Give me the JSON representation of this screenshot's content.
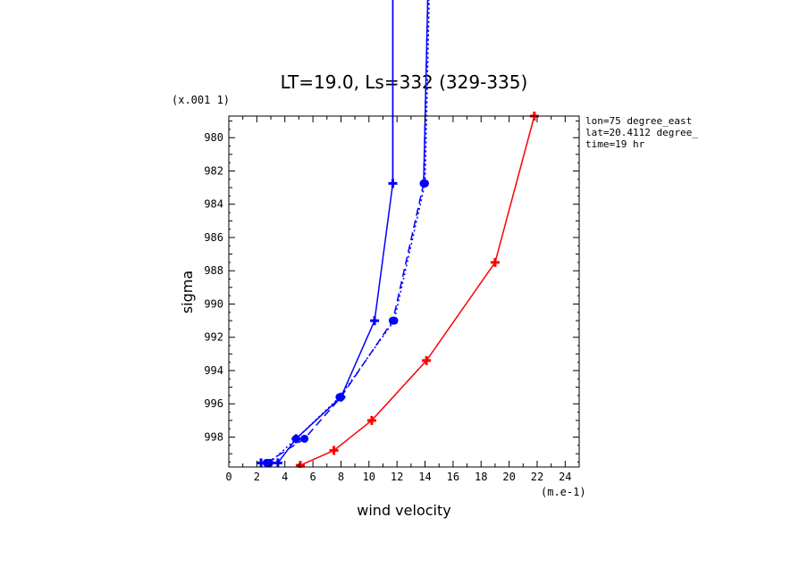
{
  "chart_data": {
    "type": "line",
    "title": "LT=19.0, Ls=332 (329-335)",
    "xlabel": "wind velocity",
    "ylabel": "sigma",
    "x_unit": "(m.e-1)",
    "y_unit": "(x.001 1)",
    "xlim": [
      0,
      25
    ],
    "ylim": [
      999.8,
      978.7
    ],
    "x_ticks": [
      0,
      2,
      4,
      6,
      8,
      10,
      12,
      14,
      16,
      18,
      20,
      22,
      24
    ],
    "y_ticks": [
      980,
      982,
      984,
      986,
      988,
      990,
      992,
      994,
      996,
      998
    ],
    "info": [
      "lon=75 degree_east",
      "lat=20.4112 degree_",
      "time=19 hr"
    ],
    "series": [
      {
        "color": "#0000ff",
        "style": "solid",
        "marker": "plus",
        "points": [
          [
            2.3,
            999.55
          ],
          [
            3.5,
            999.55
          ],
          [
            4.8,
            998.1
          ],
          [
            8.0,
            995.6
          ],
          [
            10.4,
            991.0
          ],
          [
            11.7,
            982.75
          ],
          [
            11.7,
            960.0
          ]
        ]
      },
      {
        "color": "#0000ff",
        "style": "dashed",
        "marker": "dot",
        "points": [
          [
            2.7,
            999.55
          ],
          [
            5.4,
            998.1
          ],
          [
            8.0,
            995.6
          ],
          [
            11.7,
            991.0
          ],
          [
            13.9,
            982.75
          ],
          [
            14.5,
            960.0
          ]
        ]
      },
      {
        "color": "#0000ff",
        "style": "dotted",
        "marker": "dot",
        "points": [
          [
            2.9,
            999.55
          ],
          [
            4.8,
            998.1
          ],
          [
            7.9,
            995.6
          ],
          [
            11.8,
            991.0
          ],
          [
            14.0,
            982.75
          ],
          [
            14.6,
            960.0
          ]
        ]
      },
      {
        "color": "#ff0000",
        "style": "solid",
        "marker": "plus",
        "points": [
          [
            5.1,
            999.7
          ],
          [
            7.5,
            998.8
          ],
          [
            10.2,
            997.0
          ],
          [
            14.1,
            993.4
          ],
          [
            19.0,
            987.5
          ],
          [
            21.8,
            978.7
          ]
        ]
      }
    ]
  }
}
